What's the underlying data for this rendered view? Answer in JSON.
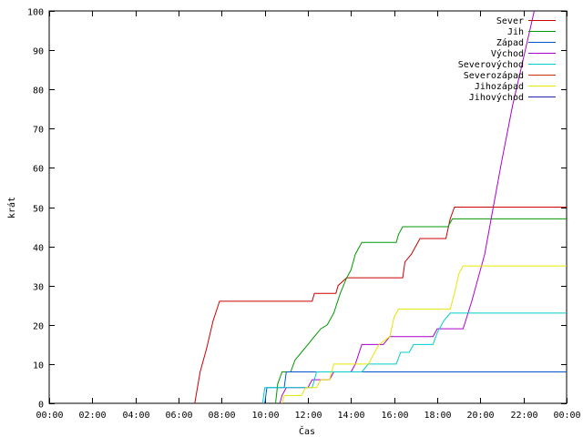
{
  "chart_data": {
    "type": "line",
    "xlabel": "Čas",
    "ylabel": "krát",
    "xlim": [
      0,
      24
    ],
    "ylim": [
      0,
      100
    ],
    "x_ticks": [
      {
        "v": 0,
        "label": "00:00"
      },
      {
        "v": 2,
        "label": "02:00"
      },
      {
        "v": 4,
        "label": "04:00"
      },
      {
        "v": 6,
        "label": "06:00"
      },
      {
        "v": 8,
        "label": "08:00"
      },
      {
        "v": 10,
        "label": "10:00"
      },
      {
        "v": 12,
        "label": "12:00"
      },
      {
        "v": 14,
        "label": "14:00"
      },
      {
        "v": 16,
        "label": "16:00"
      },
      {
        "v": 18,
        "label": "18:00"
      },
      {
        "v": 20,
        "label": "20:00"
      },
      {
        "v": 22,
        "label": "22:00"
      },
      {
        "v": 24,
        "label": "00:00"
      }
    ],
    "y_ticks": [
      0,
      10,
      20,
      30,
      40,
      50,
      60,
      70,
      80,
      90,
      100
    ],
    "grid": false,
    "legend_position": "top-right",
    "series": [
      {
        "name": "Sever",
        "color": "#cc0000",
        "points": [
          [
            6.75,
            0
          ],
          [
            7.0,
            8
          ],
          [
            7.3,
            14
          ],
          [
            7.6,
            21
          ],
          [
            7.9,
            26
          ],
          [
            12.2,
            26
          ],
          [
            12.3,
            28
          ],
          [
            13.3,
            28
          ],
          [
            13.4,
            30
          ],
          [
            13.8,
            32
          ],
          [
            16.4,
            32
          ],
          [
            16.5,
            36
          ],
          [
            16.8,
            38
          ],
          [
            17.0,
            40
          ],
          [
            17.2,
            42
          ],
          [
            18.4,
            42
          ],
          [
            18.6,
            47
          ],
          [
            18.8,
            50
          ],
          [
            24,
            50
          ]
        ]
      },
      {
        "name": "Jih",
        "color": "#009900",
        "points": [
          [
            10.5,
            0
          ],
          [
            10.6,
            5
          ],
          [
            10.8,
            8
          ],
          [
            11.2,
            8
          ],
          [
            11.4,
            11
          ],
          [
            11.7,
            13
          ],
          [
            12.0,
            15
          ],
          [
            12.3,
            17
          ],
          [
            12.6,
            19
          ],
          [
            12.9,
            20
          ],
          [
            13.2,
            23
          ],
          [
            13.5,
            28
          ],
          [
            13.8,
            32
          ],
          [
            14.0,
            34
          ],
          [
            14.2,
            38
          ],
          [
            14.5,
            41
          ],
          [
            16.1,
            41
          ],
          [
            16.2,
            43
          ],
          [
            16.4,
            45
          ],
          [
            18.5,
            45
          ],
          [
            18.7,
            47
          ],
          [
            24,
            47
          ]
        ]
      },
      {
        "name": "Západ",
        "color": "#0055cc",
        "points": [
          [
            10.0,
            0
          ],
          [
            10.1,
            4
          ],
          [
            10.9,
            4
          ],
          [
            11.0,
            8
          ],
          [
            24,
            8
          ]
        ]
      },
      {
        "name": "Východ",
        "color": "#aa00cc",
        "points": [
          [
            10.7,
            0
          ],
          [
            10.8,
            2
          ],
          [
            11.0,
            4
          ],
          [
            12.0,
            4
          ],
          [
            12.2,
            6
          ],
          [
            13.0,
            6
          ],
          [
            13.2,
            8
          ],
          [
            14.0,
            8
          ],
          [
            14.2,
            10
          ],
          [
            14.5,
            15
          ],
          [
            15.5,
            15
          ],
          [
            15.8,
            17
          ],
          [
            17.8,
            17
          ],
          [
            18.0,
            19
          ],
          [
            19.2,
            19
          ],
          [
            19.6,
            26
          ],
          [
            20.2,
            38
          ],
          [
            20.6,
            50
          ],
          [
            21.0,
            62
          ],
          [
            21.5,
            76
          ],
          [
            22.0,
            88
          ],
          [
            22.5,
            100
          ]
        ]
      },
      {
        "name": "Severovýchod",
        "color": "#00cccc",
        "points": [
          [
            9.9,
            0
          ],
          [
            10.0,
            4
          ],
          [
            12.2,
            4
          ],
          [
            12.4,
            8
          ],
          [
            14.5,
            8
          ],
          [
            14.8,
            10
          ],
          [
            16.1,
            10
          ],
          [
            16.3,
            13
          ],
          [
            16.7,
            13
          ],
          [
            16.9,
            15
          ],
          [
            17.8,
            15
          ],
          [
            18.0,
            18
          ],
          [
            18.3,
            21
          ],
          [
            18.6,
            23
          ],
          [
            24,
            23
          ]
        ]
      },
      {
        "name": "Severozápad",
        "color": "#cc3300",
        "points": []
      },
      {
        "name": "Jihozápad",
        "color": "#e6e600",
        "points": [
          [
            10.8,
            0
          ],
          [
            10.9,
            2
          ],
          [
            11.7,
            2
          ],
          [
            11.9,
            4
          ],
          [
            12.4,
            4
          ],
          [
            12.6,
            6
          ],
          [
            13.0,
            6
          ],
          [
            13.2,
            10
          ],
          [
            14.8,
            10
          ],
          [
            15.0,
            12
          ],
          [
            15.3,
            15
          ],
          [
            15.8,
            17
          ],
          [
            16.0,
            22
          ],
          [
            16.2,
            24
          ],
          [
            18.6,
            24
          ],
          [
            18.8,
            28
          ],
          [
            19.0,
            33
          ],
          [
            19.2,
            35
          ],
          [
            24,
            35
          ]
        ]
      },
      {
        "name": "Jihovýchod",
        "color": "#2222aa",
        "points": []
      }
    ]
  }
}
